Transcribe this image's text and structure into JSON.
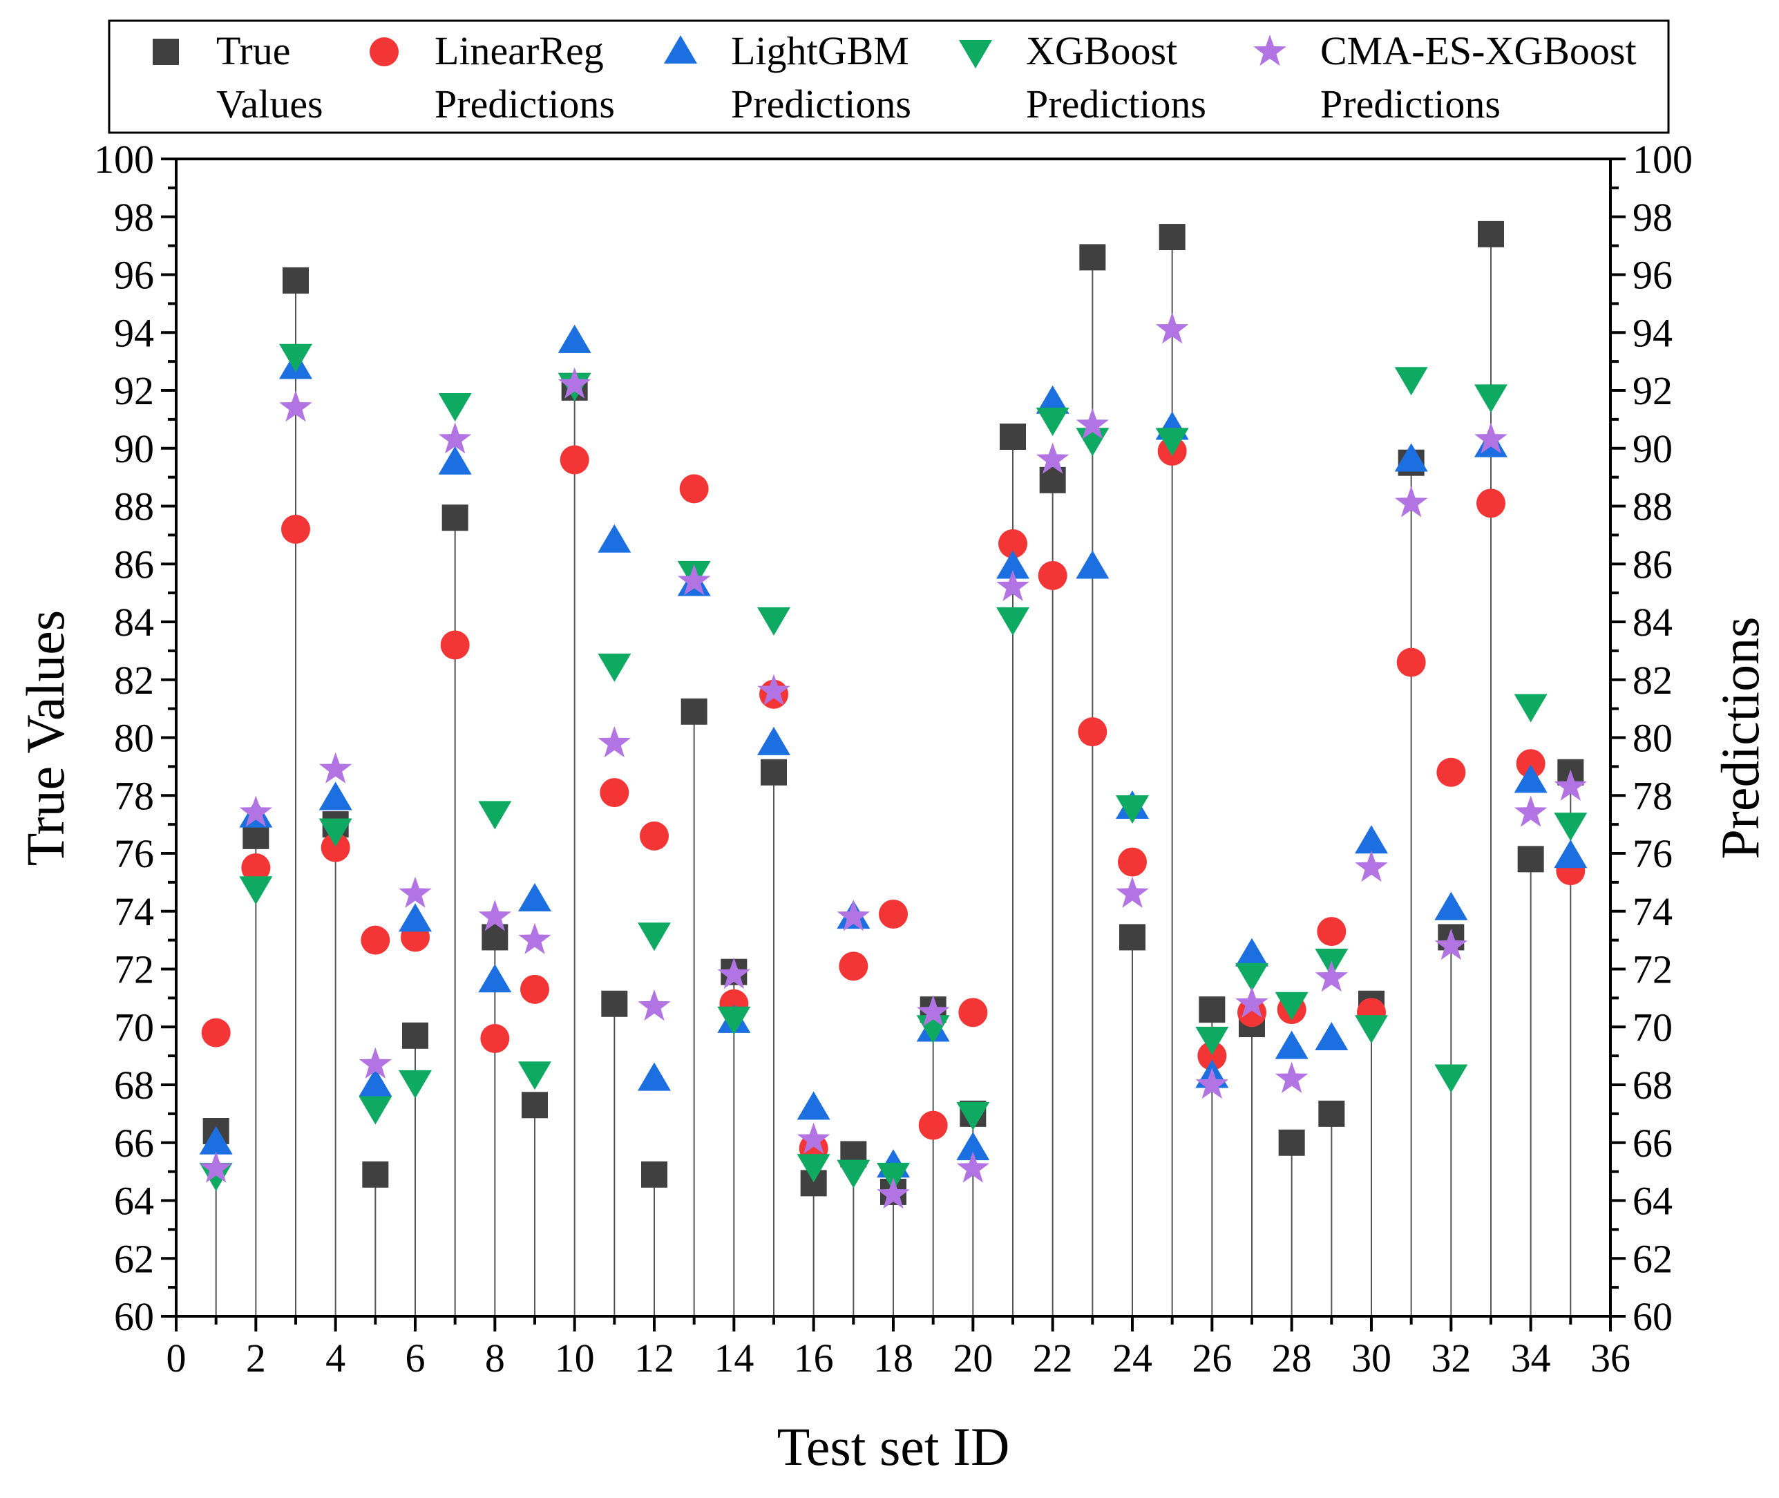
{
  "chart_data": {
    "type": "scatter",
    "xlabel": "Test set ID",
    "ylabel": "True Values",
    "ylabel_right": "Predictions",
    "xlim": [
      0,
      36
    ],
    "ylim": [
      60,
      100
    ],
    "xticks": [
      0,
      2,
      4,
      6,
      8,
      10,
      12,
      14,
      16,
      18,
      20,
      22,
      24,
      26,
      28,
      30,
      32,
      34,
      36
    ],
    "yticks": [
      60,
      62,
      64,
      66,
      68,
      70,
      72,
      74,
      76,
      78,
      80,
      82,
      84,
      86,
      88,
      90,
      92,
      94,
      96,
      98,
      100
    ],
    "grid": false,
    "legend_position": "top",
    "x": [
      1,
      2,
      3,
      4,
      5,
      6,
      7,
      8,
      9,
      10,
      11,
      12,
      13,
      14,
      15,
      16,
      17,
      18,
      19,
      20,
      21,
      22,
      23,
      24,
      25,
      26,
      27,
      28,
      29,
      30,
      31,
      32,
      33,
      34,
      35
    ],
    "series": [
      {
        "name_line1": "True",
        "name_line2": "Values",
        "marker": "square",
        "color": "#404040",
        "drop_lines": true,
        "values": [
          66.4,
          76.6,
          95.8,
          77.0,
          64.9,
          69.7,
          87.6,
          73.1,
          67.3,
          92.1,
          70.8,
          64.9,
          80.9,
          71.9,
          78.8,
          64.6,
          65.6,
          64.3,
          70.6,
          67.0,
          90.4,
          88.9,
          96.6,
          73.1,
          97.3,
          70.6,
          70.1,
          66.0,
          67.0,
          70.8,
          89.5,
          73.1,
          97.4,
          75.8,
          78.8
        ]
      },
      {
        "name_line1": "LinearReg",
        "name_line2": "Predictions",
        "marker": "circle",
        "color": "#f43535",
        "values": [
          69.8,
          75.5,
          87.2,
          76.2,
          73.0,
          73.1,
          83.2,
          69.6,
          71.3,
          89.6,
          78.1,
          76.6,
          88.6,
          70.8,
          81.5,
          65.8,
          72.1,
          73.9,
          66.6,
          70.5,
          86.7,
          85.6,
          80.2,
          75.7,
          89.9,
          69.0,
          70.5,
          70.6,
          73.3,
          70.5,
          82.6,
          78.8,
          88.1,
          79.1,
          75.4
        ]
      },
      {
        "name_line1": "LightGBM",
        "name_line2": "Predictions",
        "marker": "triangle-up",
        "color": "#1b6fe0",
        "values": [
          66.0,
          77.3,
          92.8,
          77.9,
          68.0,
          73.7,
          89.5,
          71.6,
          74.4,
          93.7,
          86.8,
          68.2,
          85.3,
          70.2,
          79.8,
          67.2,
          73.8,
          65.2,
          69.9,
          65.8,
          85.9,
          91.6,
          85.9,
          77.6,
          90.7,
          68.3,
          72.5,
          69.3,
          69.6,
          76.4,
          89.6,
          74.1,
          90.1,
          78.5,
          75.9
        ]
      },
      {
        "name_line1": "XGBoost",
        "name_line2": "Predictions",
        "marker": "triangle-down",
        "color": "#0eaa62",
        "values": [
          64.9,
          74.8,
          93.2,
          76.8,
          67.2,
          68.1,
          91.5,
          77.4,
          68.4,
          92.2,
          82.5,
          73.2,
          85.7,
          70.3,
          84.1,
          65.2,
          65.0,
          64.9,
          70.0,
          67.0,
          84.1,
          91.0,
          90.3,
          77.6,
          90.3,
          69.6,
          71.8,
          70.8,
          72.3,
          70.0,
          92.4,
          68.3,
          91.8,
          81.1,
          77.0
        ]
      },
      {
        "name_line1": "CMA-ES-XGBoost",
        "name_line2": "Predictions",
        "marker": "star",
        "color": "#b274e2",
        "values": [
          65.1,
          77.4,
          91.4,
          78.9,
          68.7,
          74.6,
          90.3,
          73.8,
          73.0,
          92.2,
          79.8,
          70.7,
          85.4,
          71.8,
          81.6,
          66.1,
          73.8,
          64.2,
          70.5,
          65.1,
          85.2,
          89.6,
          90.8,
          74.6,
          94.1,
          68.0,
          70.8,
          68.2,
          71.7,
          75.5,
          88.1,
          72.8,
          90.3,
          77.4,
          78.3
        ]
      }
    ]
  }
}
